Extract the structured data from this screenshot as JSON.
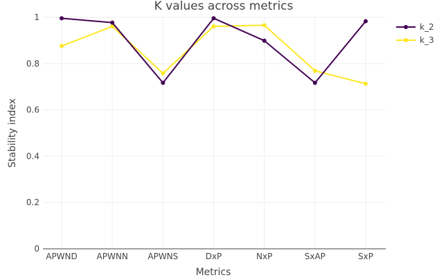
{
  "chart_data": {
    "type": "line",
    "title": "K values across metrics",
    "xlabel": "Metrics",
    "ylabel": "Stability index",
    "categories": [
      "APWND",
      "APWNN",
      "APWNS",
      "DxP",
      "NxP",
      "SxAP",
      "SxP"
    ],
    "ylim": [
      0,
      1
    ],
    "yticks": [
      0,
      0.2,
      0.4,
      0.6,
      0.8,
      1
    ],
    "ytick_labels": [
      "0",
      "0.2",
      "0.4",
      "0.6",
      "0.8",
      "1"
    ],
    "grid": true,
    "legend_position": "top-right",
    "series": [
      {
        "name": "k_2",
        "color": "#440154",
        "values": [
          0.996,
          0.977,
          0.717,
          0.996,
          0.899,
          0.717,
          0.983
        ]
      },
      {
        "name": "k_3",
        "color": "#fde725",
        "values": [
          0.876,
          0.961,
          0.758,
          0.961,
          0.966,
          0.769,
          0.713
        ]
      }
    ]
  }
}
